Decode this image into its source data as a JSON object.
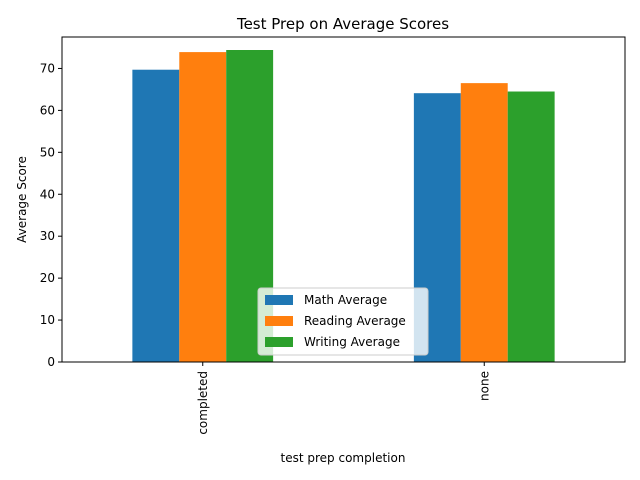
{
  "chart_data": {
    "type": "bar",
    "title": "Test Prep on Average Scores",
    "xlabel": "test prep completion",
    "ylabel": "Average Score",
    "categories": [
      "completed",
      "none"
    ],
    "series": [
      {
        "name": "Math Average",
        "color": "#1f77b4",
        "values": [
          69.7,
          64.1
        ]
      },
      {
        "name": "Reading Average",
        "color": "#ff7f0e",
        "values": [
          73.9,
          66.5
        ]
      },
      {
        "name": "Writing Average",
        "color": "#2ca02c",
        "values": [
          74.4,
          64.5
        ]
      }
    ],
    "ylim": [
      0,
      77.5
    ],
    "yticks": [
      0,
      10,
      20,
      30,
      40,
      50,
      60,
      70
    ],
    "grid": false,
    "legend_position": "bottom-center"
  }
}
